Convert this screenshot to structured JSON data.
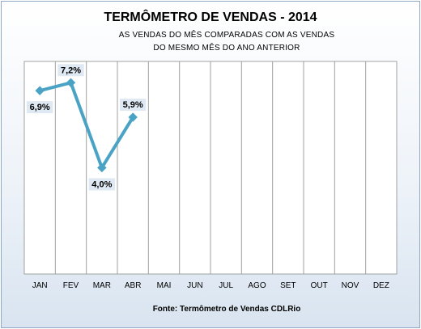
{
  "chart_data": {
    "type": "line",
    "title": "TERMÔMETRO DE VENDAS - 2014",
    "subtitle_lines": [
      "AS VENDAS  DO MÊS COMPARADAS  COM AS VENDAS",
      "DO MESMO MÊS DO ANO  ANTERIOR"
    ],
    "categories": [
      "JAN",
      "FEV",
      "MAR",
      "ABR",
      "MAI",
      "JUN",
      "JUL",
      "AGO",
      "SET",
      "OUT",
      "NOV",
      "DEZ"
    ],
    "series": [
      {
        "values": [
          6.9,
          7.2,
          4.0,
          5.9,
          null,
          null,
          null,
          null,
          null,
          null,
          null,
          null
        ],
        "labels": [
          "6,9%",
          "7,2%",
          "4,0%",
          "5,9%"
        ],
        "color": "#4aa3c4"
      }
    ],
    "ylim": [
      0,
      8
    ],
    "grid": "vertical",
    "legend": "none",
    "source": "Fonte: Termômetro de Vendas CDLRio"
  }
}
